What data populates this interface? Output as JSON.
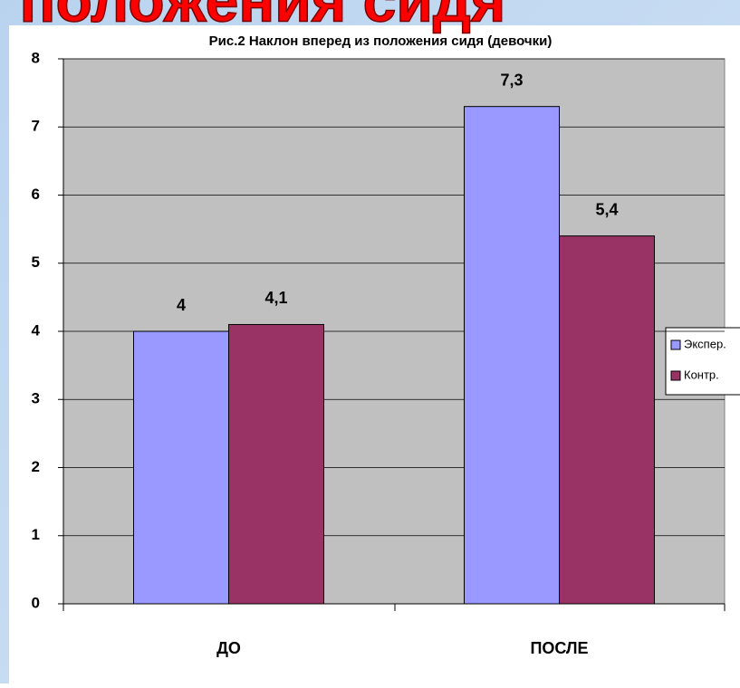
{
  "heading": "положения сидя",
  "chart_data": {
    "type": "bar",
    "title": "Рис.2 Наклон вперед из положения сидя (девочки)",
    "categories": [
      "ДО",
      "ПОСЛЕ"
    ],
    "series": [
      {
        "name": "Экспер.",
        "color": "#9999ff",
        "values": [
          4,
          7.3
        ],
        "value_labels": [
          "4",
          "7,3"
        ]
      },
      {
        "name": "Контр.",
        "color": "#993366",
        "values": [
          4.1,
          5.4
        ],
        "value_labels": [
          "4,1",
          "5,4"
        ]
      }
    ],
    "ylim": [
      0,
      8
    ],
    "yticks": [
      0,
      1,
      2,
      3,
      4,
      5,
      6,
      7,
      8
    ],
    "grid": true,
    "legend": "right"
  }
}
